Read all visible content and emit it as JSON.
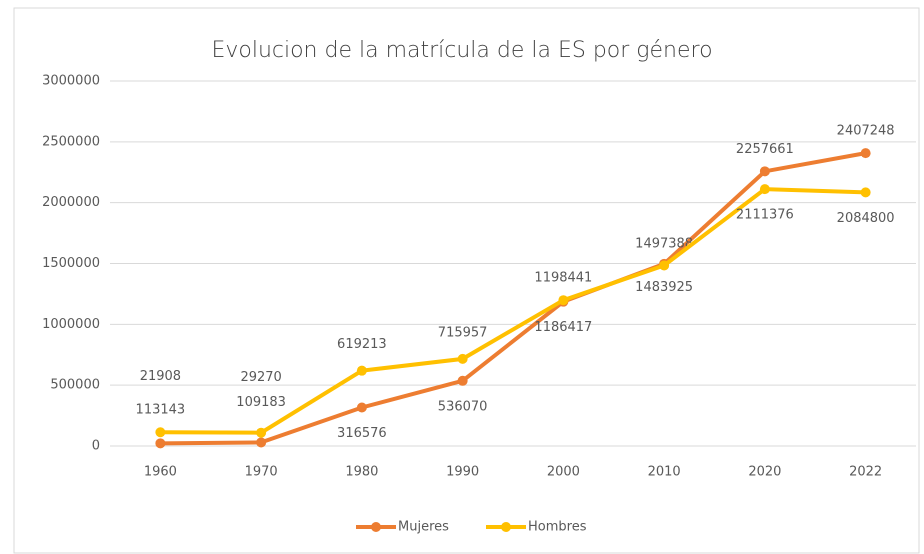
{
  "chart_data": {
    "type": "line",
    "title": "Evolucion de la matrícula de la ES por género",
    "categories": [
      "1960",
      "1970",
      "1980",
      "1990",
      "2000",
      "2010",
      "2020",
      "2022"
    ],
    "series": [
      {
        "name": "Mujeres",
        "color": "#ed7d31",
        "values": [
          21908,
          29270,
          316576,
          536070,
          1186417,
          1497388,
          2257661,
          2407248
        ]
      },
      {
        "name": "Hombres",
        "color": "#ffc000",
        "values": [
          113143,
          109183,
          619213,
          715957,
          1198441,
          1483925,
          2111376,
          2084800
        ]
      }
    ],
    "ylim": [
      0,
      3000000
    ],
    "yticks": [
      0,
      500000,
      1000000,
      1500000,
      2000000,
      2500000,
      3000000
    ],
    "grid": true,
    "legend": "bottom"
  }
}
